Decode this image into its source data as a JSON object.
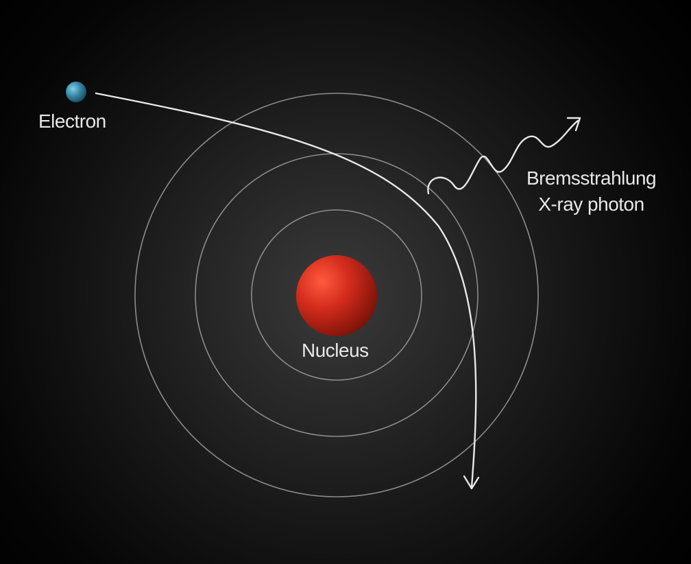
{
  "labels": {
    "electron": "Electron",
    "nucleus": "Nucleus",
    "photon_line1": "Bremsstrahlung",
    "photon_line2": "X-ray photon"
  },
  "colors": {
    "background": "#000000",
    "orbit": "#9a9a9a",
    "path": "#e8e8e8",
    "nucleus": "#c0281e",
    "electron": "#3a8aa8",
    "text": "#e8e8e8"
  }
}
